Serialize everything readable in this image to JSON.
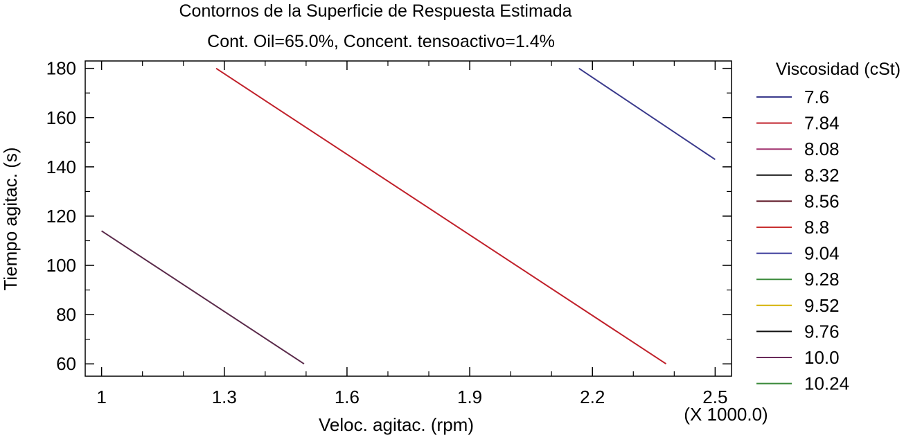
{
  "chart_data": {
    "type": "contour",
    "title": "Contornos de la Superficie de Respuesta Estimada",
    "subtitle": "Cont. Oil=65.0%, Concent. tensoactivo=1.4%",
    "xlabel": "Veloc. agitac. (rpm)",
    "ylabel": "Tiempo agitac. (s)",
    "x_multiplier_label": "(X 1000.0)",
    "xlim": [
      0.96,
      2.54
    ],
    "ylim": [
      55,
      183
    ],
    "x_ticks": [
      1,
      1.3,
      1.6,
      1.9,
      2.2,
      2.5
    ],
    "x_tick_labels": [
      "1",
      "1.3",
      "1.6",
      "1.9",
      "2.2",
      "2.5"
    ],
    "y_ticks": [
      60,
      80,
      100,
      120,
      140,
      160,
      180
    ],
    "y_tick_labels": [
      "60",
      "80",
      "100",
      "120",
      "140",
      "160",
      "180"
    ],
    "legend": {
      "title": "Viscosidad (cSt)",
      "placement": "right",
      "entries": [
        {
          "label": "7.6",
          "color": "#3a3a8c"
        },
        {
          "label": "7.84",
          "color": "#c0202a"
        },
        {
          "label": "8.08",
          "color": "#a0306e"
        },
        {
          "label": "8.32",
          "color": "#111111"
        },
        {
          "label": "8.56",
          "color": "#5a1020"
        },
        {
          "label": "8.8",
          "color": "#c83030"
        },
        {
          "label": "9.04",
          "color": "#3a3a9a"
        },
        {
          "label": "9.28",
          "color": "#3a8a3a"
        },
        {
          "label": "9.52",
          "color": "#d4b000"
        },
        {
          "label": "9.76",
          "color": "#111111"
        },
        {
          "label": "10.0",
          "color": "#6a2a5a"
        },
        {
          "label": "10.24",
          "color": "#3a8a3a"
        }
      ]
    },
    "contours": [
      {
        "level": "7.6",
        "color": "#3a3a8c",
        "points": [
          [
            2.167,
            180
          ],
          [
            2.5,
            143
          ]
        ]
      },
      {
        "level": "8.8",
        "color": "#c0202a",
        "points": [
          [
            1.28,
            180
          ],
          [
            2.38,
            60
          ]
        ]
      },
      {
        "level": "10.0",
        "color": "#5a2a4a",
        "points": [
          [
            1.0,
            114
          ],
          [
            1.495,
            60
          ]
        ]
      }
    ]
  }
}
